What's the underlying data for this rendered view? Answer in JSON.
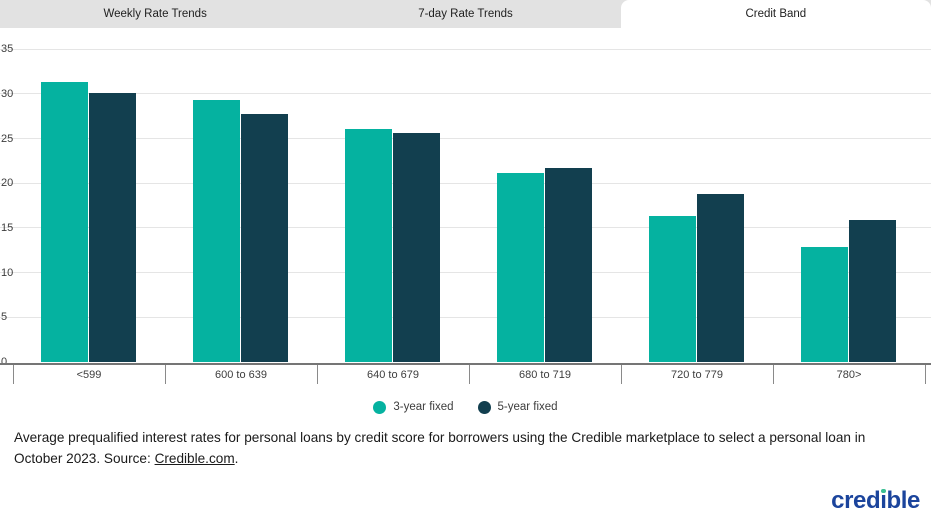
{
  "tabs": [
    {
      "label": "Weekly Rate Trends",
      "active": false
    },
    {
      "label": "7-day Rate Trends",
      "active": false
    },
    {
      "label": "Credit Band",
      "active": true
    }
  ],
  "chart_data": {
    "type": "bar",
    "categories": [
      "<599",
      "600 to 639",
      "640 to 679",
      "680 to 719",
      "720 to 779",
      "780>"
    ],
    "series": [
      {
        "name": "3-year fixed",
        "color": "#05b2a0",
        "values": [
          31.3,
          29.3,
          26.1,
          21.1,
          16.3,
          12.9
        ]
      },
      {
        "name": "5-year fixed",
        "color": "#123f4f",
        "values": [
          30.1,
          27.7,
          25.6,
          21.7,
          18.8,
          15.9
        ]
      }
    ],
    "title": "",
    "xlabel": "",
    "ylabel": "",
    "ylim": [
      0,
      35
    ],
    "ytick_step": 5,
    "grid": true,
    "legend_position": "bottom"
  },
  "caption": {
    "before_link": "Average prequalified interest rates for personal loans by credit score for borrowers using the Credible marketplace to select a personal loan in October 2023. Source: ",
    "link": "Credible.com",
    "after_link": "."
  },
  "logo": {
    "text": "credible"
  }
}
